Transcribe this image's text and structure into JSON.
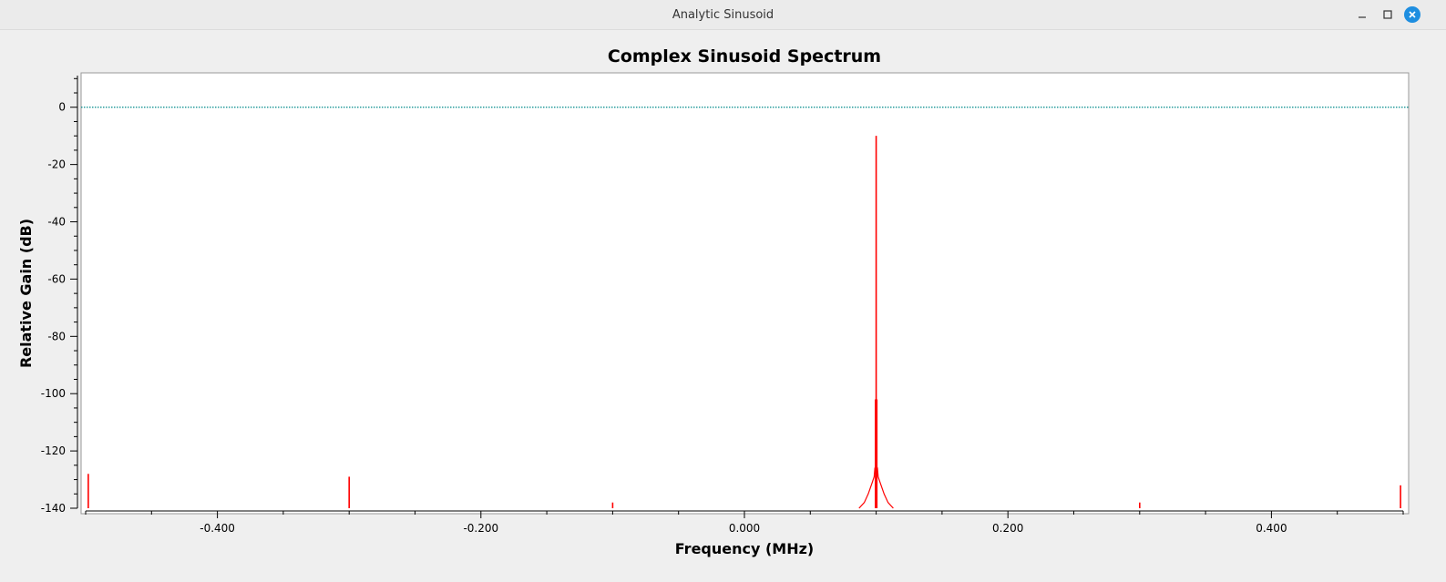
{
  "window": {
    "title": "Analytic Sinusoid",
    "minimize_icon": "minimize-icon",
    "maximize_icon": "maximize-icon",
    "close_icon": "close-icon",
    "close_color": "#1e8ee0"
  },
  "chart_data": {
    "type": "line",
    "title": "Complex Sinusoid Spectrum",
    "xlabel": "Frequency (MHz)",
    "ylabel": "Relative Gain (dB)",
    "xlim": [
      -0.5,
      0.5
    ],
    "ylim": [
      -140,
      12
    ],
    "x_ticks": [
      -0.4,
      -0.2,
      0.0,
      0.2,
      0.4
    ],
    "x_tick_labels": [
      "-0.400",
      "-0.200",
      "0.000",
      "0.200",
      "0.400"
    ],
    "y_ticks": [
      0,
      -20,
      -40,
      -60,
      -80,
      -100,
      -120,
      -140
    ],
    "y_tick_labels": [
      "0",
      "-20",
      "-40",
      "-60",
      "-80",
      "-100",
      "-120",
      "-140"
    ],
    "grid": false,
    "series": [
      {
        "color": "#ff0000",
        "spikes": [
          {
            "x": -0.498,
            "y": -128
          },
          {
            "x": -0.3,
            "y": -129
          },
          {
            "x": -0.1,
            "y": -138
          },
          {
            "x": 0.0995,
            "y": -102
          },
          {
            "x": 0.1,
            "y": -10
          },
          {
            "x": 0.1005,
            "y": -102
          },
          {
            "x": 0.3,
            "y": -138
          },
          {
            "x": 0.498,
            "y": -132
          }
        ],
        "skirt": [
          {
            "x": 0.087,
            "y": -140
          },
          {
            "x": 0.091,
            "y": -138
          },
          {
            "x": 0.094,
            "y": -135
          },
          {
            "x": 0.097,
            "y": -131
          },
          {
            "x": 0.0985,
            "y": -129
          },
          {
            "x": 0.099,
            "y": -126
          },
          {
            "x": 0.1,
            "y": -125
          },
          {
            "x": 0.101,
            "y": -126
          },
          {
            "x": 0.1015,
            "y": -129
          },
          {
            "x": 0.103,
            "y": -131
          },
          {
            "x": 0.106,
            "y": -135
          },
          {
            "x": 0.109,
            "y": -138
          },
          {
            "x": 0.113,
            "y": -140
          }
        ]
      },
      {
        "color": "#008b8b",
        "style": "dotted",
        "y": 0
      }
    ]
  }
}
